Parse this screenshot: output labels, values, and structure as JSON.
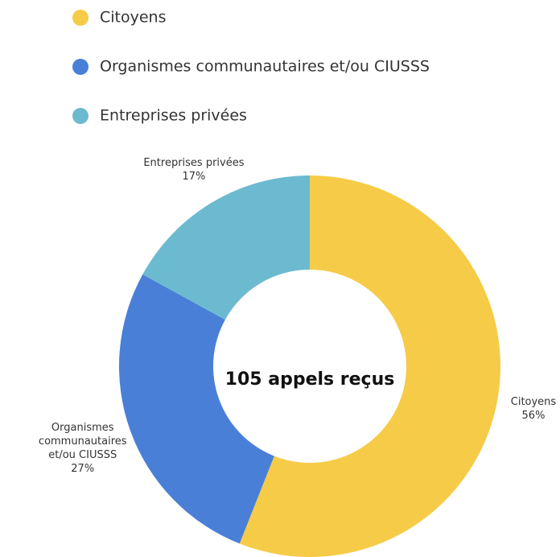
{
  "chart_data": {
    "type": "donut",
    "categories": [
      "Citoyens",
      "Organismes communautaires et/ou CIUSSS",
      "Entreprises privées"
    ],
    "values": [
      56,
      27,
      17
    ],
    "value_labels": [
      "56%",
      "27%",
      "17%"
    ],
    "colors": [
      "#f6cb48",
      "#4a7fd8",
      "#6cbad0"
    ],
    "center_label": "105 appels reçus",
    "legend": "top-left"
  }
}
